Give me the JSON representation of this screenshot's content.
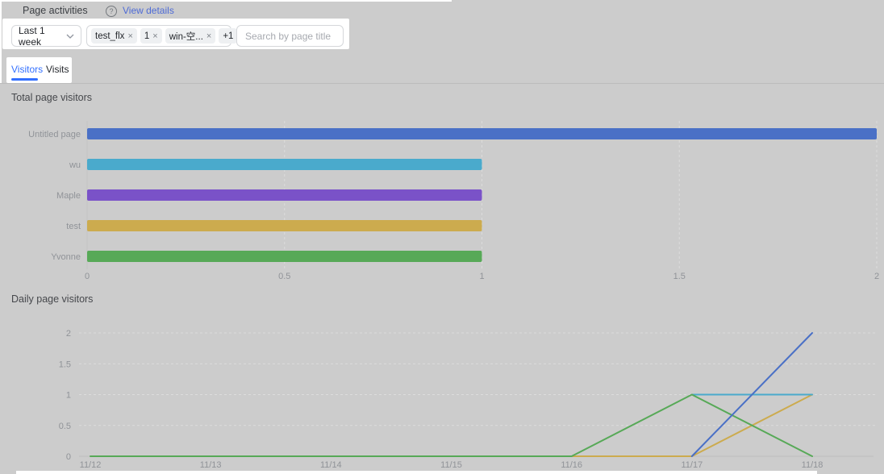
{
  "header": {
    "title": "Page activities",
    "help_glyph": "?",
    "view_details": "View details"
  },
  "filters": {
    "time_range": {
      "value": "Last 1 week"
    },
    "page_filter": {
      "tags": [
        {
          "label": "test_flx"
        },
        {
          "label": "1"
        },
        {
          "label": "win-空..."
        }
      ],
      "overflow": "+1"
    },
    "search": {
      "placeholder": "Search by page title"
    }
  },
  "tabs": {
    "items": [
      {
        "label": "Visitors",
        "active": true
      },
      {
        "label": "Visits",
        "active": false
      }
    ]
  },
  "ui": {
    "close_glyph": "×"
  },
  "colors": {
    "accent_blue": "#3370ff",
    "overlay_gray": "#cccccc",
    "bar_blue": "#4a70c6",
    "bar_cyan": "#4aaacc",
    "bar_purple": "#7a52c8",
    "bar_yellow": "#ccab4e",
    "bar_green": "#57a957"
  },
  "chart_data": [
    {
      "type": "bar",
      "orientation": "horizontal",
      "title": "Total page visitors",
      "categories": [
        "Untitled page",
        "wu",
        "Maple",
        "test",
        "Yvonne"
      ],
      "values": [
        2,
        1,
        1,
        1,
        1
      ],
      "colors": [
        "#4a70c6",
        "#4aaacc",
        "#7a52c8",
        "#ccab4e",
        "#57a957"
      ],
      "xlabel": "",
      "ylabel": "",
      "xlim": [
        0,
        2
      ],
      "xticks": [
        0,
        0.5,
        1,
        1.5,
        2
      ],
      "grid": "vertical-dotted",
      "legend": "none"
    },
    {
      "type": "line",
      "title": "Daily page visitors",
      "x": [
        "11/12",
        "11/13",
        "11/14",
        "11/15",
        "11/16",
        "11/17",
        "11/18"
      ],
      "series": [
        {
          "name": "test",
          "color": "#ccab4e",
          "values": [
            null,
            null,
            null,
            null,
            0,
            0,
            1
          ]
        },
        {
          "name": "wu",
          "color": "#4aaacc",
          "values": [
            null,
            null,
            null,
            null,
            null,
            1,
            1
          ]
        },
        {
          "name": "Yvonne",
          "color": "#57a957",
          "values": [
            0,
            0,
            0,
            0,
            0,
            1,
            0
          ]
        },
        {
          "name": "Untitled page",
          "color": "#4a70c6",
          "values": [
            null,
            null,
            null,
            null,
            null,
            0,
            2
          ]
        }
      ],
      "xlabel": "",
      "ylabel": "",
      "ylim": [
        0,
        2
      ],
      "yticks": [
        0,
        0.5,
        1,
        1.5,
        2
      ],
      "grid": "horizontal-dotted",
      "legend": "none"
    }
  ]
}
